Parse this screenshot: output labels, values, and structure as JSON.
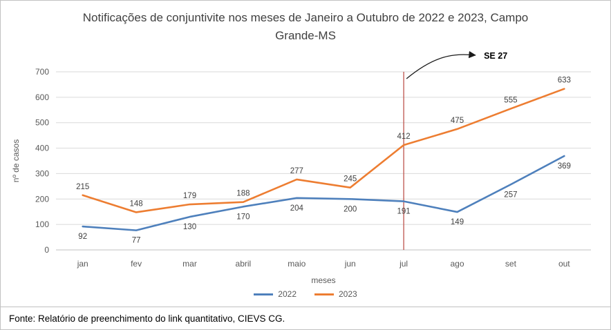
{
  "chart_data": {
    "type": "line",
    "title": "Notificações de conjuntivite nos meses de Janeiro a Outubro de 2022 e 2023, Campo Grande-MS",
    "categories": [
      "jan",
      "fev",
      "mar",
      "abril",
      "maio",
      "jun",
      "jul",
      "ago",
      "set",
      "out"
    ],
    "series": [
      {
        "name": "2022",
        "color": "#4E80BC",
        "values": [
          92,
          77,
          130,
          170,
          204,
          200,
          191,
          149,
          257,
          369
        ],
        "label_position": "below"
      },
      {
        "name": "2023",
        "color": "#ED7D31",
        "values": [
          215,
          148,
          179,
          188,
          277,
          245,
          412,
          475,
          555,
          633
        ],
        "label_position": "above"
      }
    ],
    "xlabel": "meses",
    "ylabel": "nº de casos",
    "ylim": [
      0,
      700
    ],
    "ytick_step": 100,
    "grid": true,
    "legend_position": "bottom",
    "annotation": {
      "label": "SE 27",
      "category": "jul",
      "line_color": "#BD524B"
    },
    "colors": {
      "gridline": "#D9D9D9",
      "axis_line": "#BFBFBF",
      "tick_text": "#595959",
      "data_label": "#3F3F3F",
      "title_text": "#404040"
    }
  },
  "footer": {
    "text": "Fonte: Relatório de preenchimento do link quantitativo, CIEVS CG."
  }
}
